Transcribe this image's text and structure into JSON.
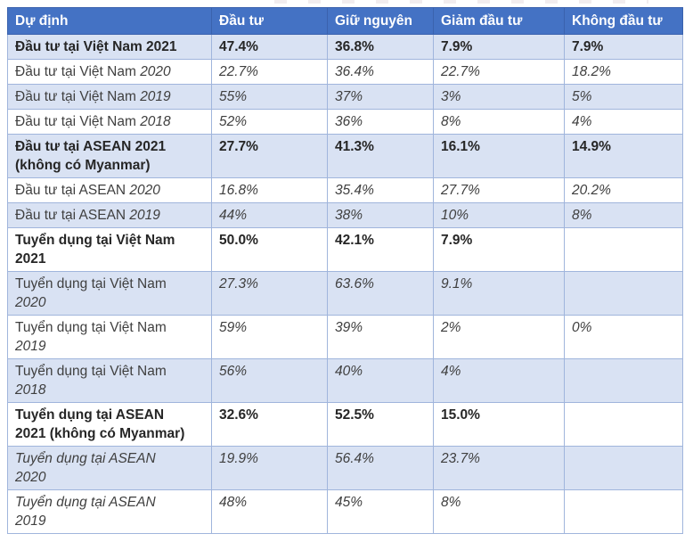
{
  "colors": {
    "header_bg": "#4472C4",
    "header_text": "#FFFFFF",
    "shaded_row_bg": "#D9E2F3",
    "border": "#A0B5DC",
    "body_text": "#3F3F3F"
  },
  "table": {
    "columns": [
      "Dự định",
      "Đầu tư",
      "Giữ nguyên",
      "Giảm đầu tư",
      "Không đầu tư"
    ],
    "rows": [
      {
        "style": "bold",
        "shaded": true,
        "name_parts": [
          {
            "text": "Đầu tư tại Việt Nam 2021"
          }
        ],
        "values": [
          "47.4%",
          "36.8%",
          "7.9%",
          "7.9%"
        ]
      },
      {
        "style": "regular",
        "shaded": false,
        "name_parts": [
          {
            "text": "Đầu tư tại Việt Nam "
          },
          {
            "text": "2020",
            "italic": true
          }
        ],
        "values": [
          "22.7%",
          "36.4%",
          "22.7%",
          "18.2%"
        ]
      },
      {
        "style": "regular",
        "shaded": true,
        "name_parts": [
          {
            "text": "Đầu tư tại Việt Nam "
          },
          {
            "text": "2019",
            "italic": true
          }
        ],
        "values": [
          "55%",
          "37%",
          "3%",
          "5%"
        ]
      },
      {
        "style": "regular",
        "shaded": false,
        "name_parts": [
          {
            "text": "Đầu tư tại Việt Nam "
          },
          {
            "text": "2018",
            "italic": true
          }
        ],
        "values": [
          "52%",
          "36%",
          "8%",
          "4%"
        ]
      },
      {
        "style": "bold",
        "shaded": true,
        "name_parts": [
          {
            "text": "Đầu tư tại ASEAN 2021"
          },
          {
            "text": "(không có Myanmar)",
            "br": true
          }
        ],
        "values": [
          "27.7%",
          "41.3%",
          "16.1%",
          "14.9%"
        ]
      },
      {
        "style": "regular",
        "shaded": false,
        "name_parts": [
          {
            "text": "Đầu tư tại ASEAN "
          },
          {
            "text": "2020",
            "italic": true
          }
        ],
        "values": [
          "16.8%",
          "35.4%",
          "27.7%",
          "20.2%"
        ]
      },
      {
        "style": "regular",
        "shaded": true,
        "name_parts": [
          {
            "text": "Đầu tư tại ASEAN "
          },
          {
            "text": "2019",
            "italic": true
          }
        ],
        "values": [
          "44%",
          "38%",
          "10%",
          "8%"
        ]
      },
      {
        "style": "bold",
        "shaded": false,
        "name_parts": [
          {
            "text": "Tuyển dụng tại Việt Nam"
          },
          {
            "text": "2021",
            "br": true
          }
        ],
        "values": [
          "50.0%",
          "42.1%",
          "7.9%",
          ""
        ]
      },
      {
        "style": "regular",
        "shaded": true,
        "name_parts": [
          {
            "text": "Tuyển dụng tại Việt Nam"
          },
          {
            "text": "2020",
            "italic": true,
            "br": true
          }
        ],
        "values": [
          "27.3%",
          "63.6%",
          "9.1%",
          ""
        ]
      },
      {
        "style": "regular",
        "shaded": false,
        "name_parts": [
          {
            "text": "Tuyển dụng tại Việt Nam"
          },
          {
            "text": "2019",
            "italic": true,
            "br": true
          }
        ],
        "values": [
          "59%",
          "39%",
          "2%",
          "0%"
        ]
      },
      {
        "style": "regular",
        "shaded": true,
        "name_parts": [
          {
            "text": "Tuyển dụng tại Việt Nam"
          },
          {
            "text": "2018",
            "italic": true,
            "br": true
          }
        ],
        "values": [
          "56%",
          "40%",
          "4%",
          ""
        ]
      },
      {
        "style": "bold",
        "shaded": false,
        "name_parts": [
          {
            "text": "Tuyển dụng tại ASEAN"
          },
          {
            "text": "2021 (không có Myanmar)",
            "br": true
          }
        ],
        "values": [
          "32.6%",
          "52.5%",
          "15.0%",
          ""
        ]
      },
      {
        "style": "italic",
        "shaded": true,
        "name_parts": [
          {
            "text": "Tuyển dụng tại ASEAN",
            "italic": true
          },
          {
            "text": "2020",
            "italic": true,
            "br": true
          }
        ],
        "values": [
          "19.9%",
          "56.4%",
          "23.7%",
          ""
        ]
      },
      {
        "style": "italic",
        "shaded": false,
        "name_parts": [
          {
            "text": "Tuyển dụng tại ASEAN",
            "italic": true
          },
          {
            "text": "2019",
            "italic": true,
            "br": true
          }
        ],
        "values": [
          "48%",
          "45%",
          "8%",
          ""
        ]
      }
    ]
  }
}
